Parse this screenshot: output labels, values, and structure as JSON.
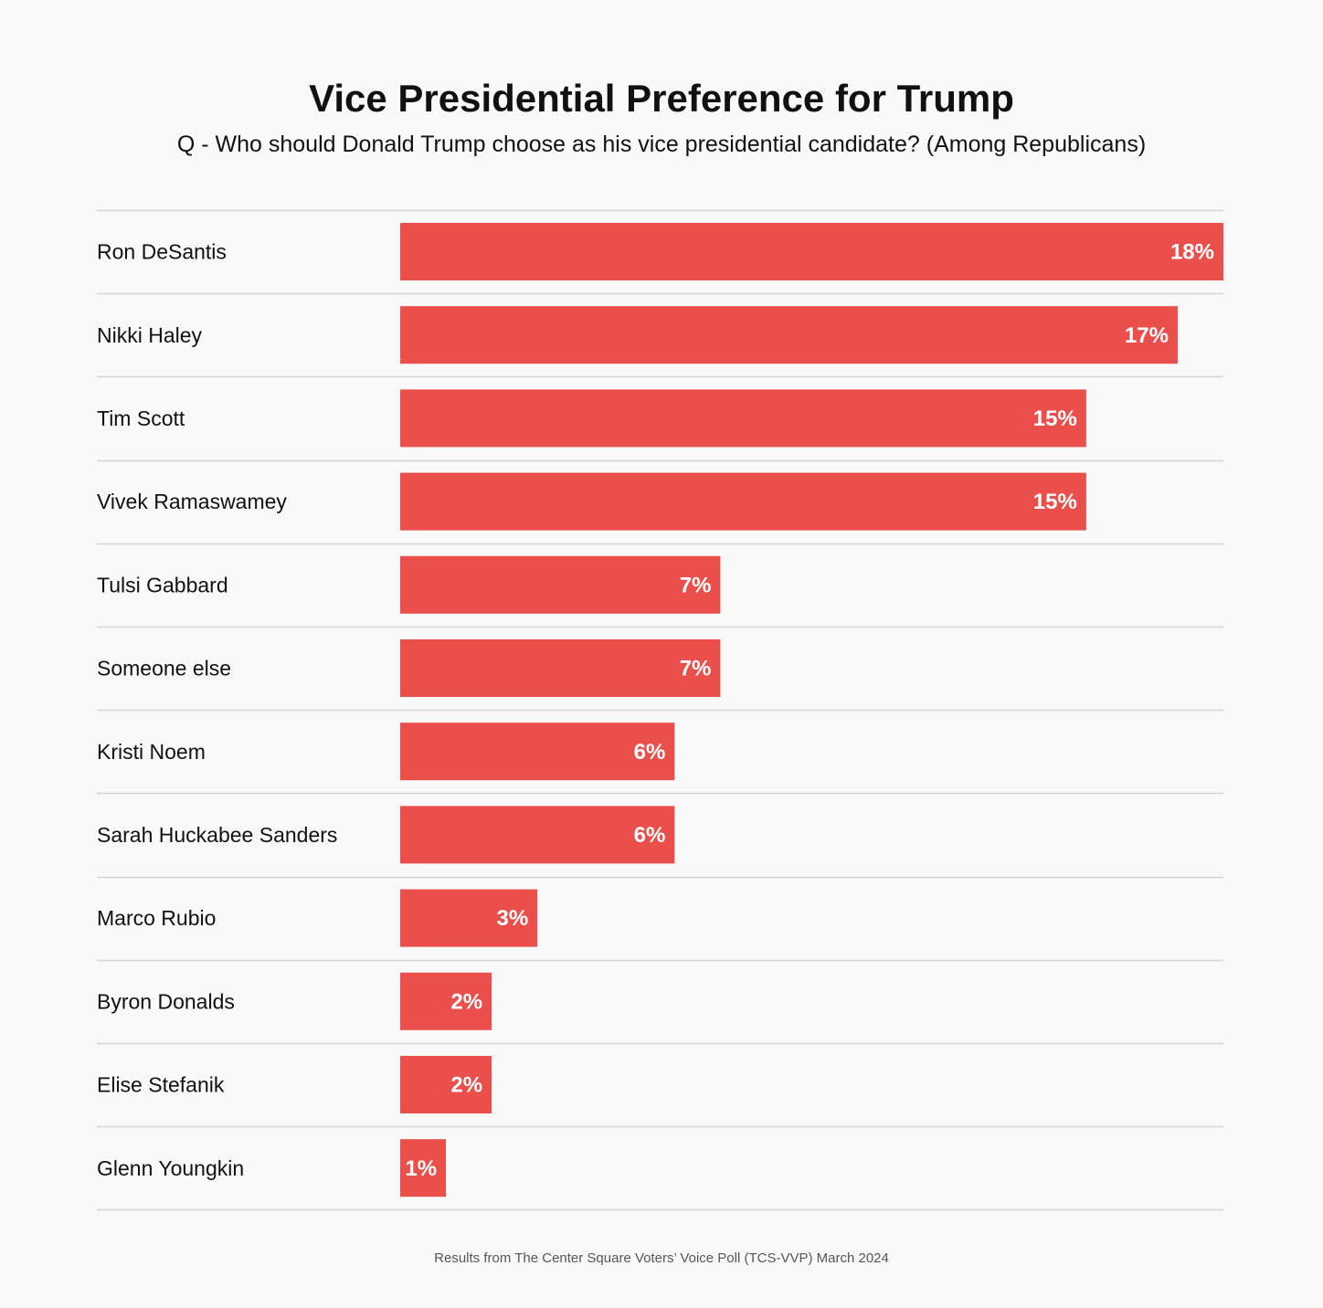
{
  "chart_data": {
    "type": "bar",
    "orientation": "horizontal",
    "title": "Vice Presidential Preference for Trump",
    "subtitle": "Q - Who should Donald Trump choose as his vice presidential candidate? (Among Republicans)",
    "categories": [
      "Ron DeSantis",
      "Nikki Haley",
      "Tim Scott",
      "Vivek Ramaswamey",
      "Tulsi Gabbard",
      "Someone else",
      "Kristi Noem",
      "Sarah Huckabee Sanders",
      "Marco Rubio",
      "Byron Donalds",
      "Elise Stefanik",
      "Glenn Youngkin"
    ],
    "values": [
      18,
      17,
      15,
      15,
      7,
      7,
      6,
      6,
      3,
      2,
      2,
      1
    ],
    "value_labels": [
      "18%",
      "17%",
      "15%",
      "15%",
      "7%",
      "7%",
      "6%",
      "6%",
      "3%",
      "2%",
      "2%",
      "1%"
    ],
    "xlim": [
      0,
      18
    ],
    "grid": false,
    "bar_color": "#eb4f4c",
    "footer": "Results from The Center Square Voters’ Voice Poll (TCS-VVP) March 2024"
  }
}
